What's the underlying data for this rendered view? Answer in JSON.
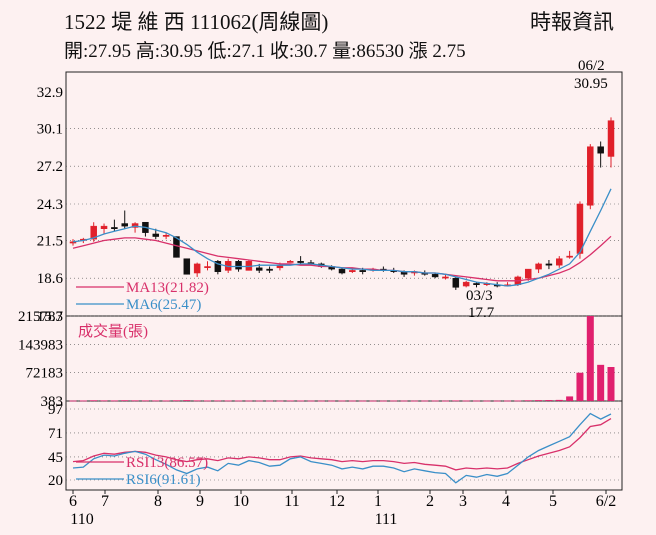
{
  "header": {
    "title": "1522 堤 維 西 111062(周線圖)",
    "quote": "開:27.95 高:30.95 低:27.1 收:30.7 量:86530 漲 2.75",
    "source": "時報資訊"
  },
  "chart_data": {
    "type": "candlestick",
    "price_panel": {
      "y_ticks": [
        "32.9",
        "30.1",
        "27.2",
        "24.3",
        "21.5",
        "18.6",
        "15.7"
      ],
      "ylim": [
        15.7,
        32.9
      ],
      "legend": [
        {
          "label": "MA13(21.82)",
          "color": "#d8306a"
        },
        {
          "label": "MA6(25.47)",
          "color": "#3a8fc8"
        }
      ],
      "annotations": {
        "high_date": "06/2",
        "high_value": "30.95",
        "low_date": "03/3",
        "low_value": "17.7"
      },
      "candles": [
        [
          21.3,
          21.6,
          21.1,
          21.4
        ],
        [
          21.5,
          21.7,
          21.3,
          21.6
        ],
        [
          21.6,
          22.9,
          21.4,
          22.6
        ],
        [
          22.4,
          22.8,
          22.0,
          22.6
        ],
        [
          22.5,
          23.1,
          22.2,
          22.4
        ],
        [
          22.8,
          23.8,
          22.4,
          22.6
        ],
        [
          22.5,
          22.9,
          22.1,
          22.8
        ],
        [
          22.9,
          22.9,
          21.8,
          22.1
        ],
        [
          22.0,
          22.4,
          21.6,
          21.8
        ],
        [
          21.9,
          22.1,
          21.6,
          21.9
        ],
        [
          21.8,
          21.8,
          20.2,
          20.2
        ],
        [
          20.1,
          20.1,
          18.9,
          18.9
        ],
        [
          19.0,
          19.8,
          18.7,
          19.7
        ],
        [
          19.5,
          19.9,
          19.2,
          19.5
        ],
        [
          19.9,
          20.0,
          18.9,
          19.1
        ],
        [
          19.2,
          20.1,
          19.0,
          19.9
        ],
        [
          19.9,
          20.0,
          19.1,
          19.3
        ],
        [
          19.2,
          20.0,
          19.2,
          19.9
        ],
        [
          19.4,
          19.7,
          19.0,
          19.2
        ],
        [
          19.3,
          19.5,
          19.0,
          19.2
        ],
        [
          19.4,
          19.8,
          19.2,
          19.6
        ],
        [
          19.9,
          20.0,
          19.8,
          19.9
        ],
        [
          19.9,
          20.3,
          19.7,
          19.8
        ],
        [
          19.8,
          20.0,
          19.6,
          19.7
        ],
        [
          19.7,
          19.8,
          19.4,
          19.5
        ],
        [
          19.5,
          19.6,
          19.2,
          19.3
        ],
        [
          19.3,
          19.4,
          18.9,
          19.0
        ],
        [
          19.1,
          19.3,
          19.0,
          19.2
        ],
        [
          19.2,
          19.4,
          18.9,
          19.1
        ],
        [
          19.2,
          19.4,
          19.1,
          19.3
        ],
        [
          19.3,
          19.5,
          19.1,
          19.2
        ],
        [
          19.2,
          19.4,
          19.0,
          19.1
        ],
        [
          19.1,
          19.2,
          18.7,
          18.9
        ],
        [
          19.0,
          19.2,
          18.8,
          19.1
        ],
        [
          19.0,
          19.2,
          18.8,
          18.9
        ],
        [
          18.9,
          19.0,
          18.6,
          18.7
        ],
        [
          18.7,
          18.9,
          18.5,
          18.7
        ],
        [
          18.6,
          18.7,
          17.7,
          17.9
        ],
        [
          18.0,
          18.4,
          17.9,
          18.3
        ],
        [
          18.2,
          18.3,
          17.9,
          18.1
        ],
        [
          18.1,
          18.3,
          18.0,
          18.2
        ],
        [
          18.1,
          18.3,
          17.9,
          18.0
        ],
        [
          18.0,
          18.3,
          18.0,
          18.1
        ],
        [
          18.1,
          18.8,
          18.0,
          18.7
        ],
        [
          18.6,
          19.3,
          18.4,
          19.3
        ],
        [
          19.3,
          19.8,
          19.0,
          19.7
        ],
        [
          19.7,
          20.0,
          19.3,
          19.6
        ],
        [
          19.6,
          20.3,
          19.4,
          20.1
        ],
        [
          20.3,
          20.7,
          20.1,
          20.3
        ],
        [
          20.5,
          24.5,
          20.1,
          24.3
        ],
        [
          24.2,
          28.9,
          23.9,
          28.7
        ],
        [
          28.7,
          29.1,
          27.1,
          28.2
        ],
        [
          27.95,
          30.95,
          27.1,
          30.7
        ]
      ],
      "ma13": [
        20.9,
        21.1,
        21.3,
        21.5,
        21.6,
        21.7,
        21.7,
        21.6,
        21.5,
        21.3,
        21.1,
        20.9,
        20.7,
        20.5,
        20.3,
        20.2,
        20.1,
        20.0,
        19.9,
        19.8,
        19.7,
        19.7,
        19.6,
        19.6,
        19.5,
        19.5,
        19.4,
        19.4,
        19.3,
        19.3,
        19.2,
        19.2,
        19.1,
        19.1,
        19.0,
        19.0,
        18.9,
        18.8,
        18.7,
        18.6,
        18.5,
        18.4,
        18.4,
        18.4,
        18.5,
        18.6,
        18.8,
        19.0,
        19.3,
        19.8,
        20.4,
        21.1,
        21.82
      ],
      "ma6": [
        21.4,
        21.5,
        21.7,
        22.0,
        22.2,
        22.4,
        22.6,
        22.5,
        22.3,
        22.1,
        21.7,
        21.2,
        20.6,
        20.1,
        19.7,
        19.5,
        19.5,
        19.5,
        19.6,
        19.6,
        19.6,
        19.6,
        19.7,
        19.7,
        19.6,
        19.5,
        19.4,
        19.3,
        19.3,
        19.2,
        19.2,
        19.2,
        19.1,
        19.1,
        19.0,
        19.0,
        18.9,
        18.7,
        18.5,
        18.3,
        18.2,
        18.1,
        18.0,
        18.1,
        18.3,
        18.6,
        18.9,
        19.3,
        19.7,
        20.6,
        22.2,
        23.8,
        25.47
      ]
    },
    "volume_panel": {
      "y_ticks": [
        "215783",
        "143983",
        "72183",
        "383"
      ],
      "ylim": [
        383,
        215783
      ],
      "title": "成交量(張)",
      "values": [
        1400,
        1600,
        2200,
        1900,
        1800,
        2300,
        2000,
        1900,
        1800,
        1700,
        2100,
        2600,
        1900,
        1700,
        1800,
        1700,
        1600,
        1500,
        1500,
        1400,
        1300,
        1700,
        1600,
        1400,
        1300,
        1300,
        1500,
        1400,
        1300,
        1300,
        1300,
        1500,
        1400,
        1300,
        1400,
        1500,
        1300,
        1800,
        1500,
        1400,
        1300,
        1300,
        1400,
        1600,
        2200,
        2600,
        2800,
        3200,
        12000,
        72000,
        215783,
        92000,
        86530
      ]
    },
    "rsi_panel": {
      "y_ticks": [
        "97",
        "71",
        "45",
        "20"
      ],
      "ylim": [
        20,
        97
      ],
      "legend": [
        {
          "label": "RSI13(86.57)",
          "color": "#d8306a"
        },
        {
          "label": "RSI6(91.61)",
          "color": "#3a8fc8"
        }
      ],
      "rsi13": [
        40,
        41,
        46,
        49,
        48,
        50,
        51,
        50,
        47,
        45,
        42,
        40,
        42,
        43,
        41,
        44,
        43,
        45,
        44,
        42,
        42,
        45,
        46,
        44,
        43,
        42,
        40,
        41,
        40,
        41,
        41,
        40,
        38,
        39,
        37,
        36,
        35,
        31,
        33,
        32,
        33,
        32,
        33,
        38,
        42,
        46,
        49,
        52,
        56,
        66,
        78,
        80,
        86.57
      ],
      "rsi6": [
        33,
        34,
        43,
        47,
        46,
        49,
        51,
        48,
        42,
        37,
        31,
        27,
        32,
        34,
        30,
        38,
        36,
        41,
        39,
        35,
        36,
        43,
        45,
        40,
        38,
        36,
        32,
        34,
        32,
        35,
        35,
        33,
        29,
        32,
        30,
        28,
        27,
        17,
        25,
        23,
        26,
        24,
        27,
        36,
        45,
        52,
        57,
        62,
        67,
        80,
        92,
        86,
        91.61
      ]
    },
    "x_axis": {
      "tick_labels": [
        "6",
        "7",
        "8",
        "9",
        "10",
        "11",
        "12",
        "1",
        "2",
        "3",
        "4",
        "5",
        "6/2"
      ],
      "year_labels": [
        "110",
        "111"
      ]
    }
  }
}
